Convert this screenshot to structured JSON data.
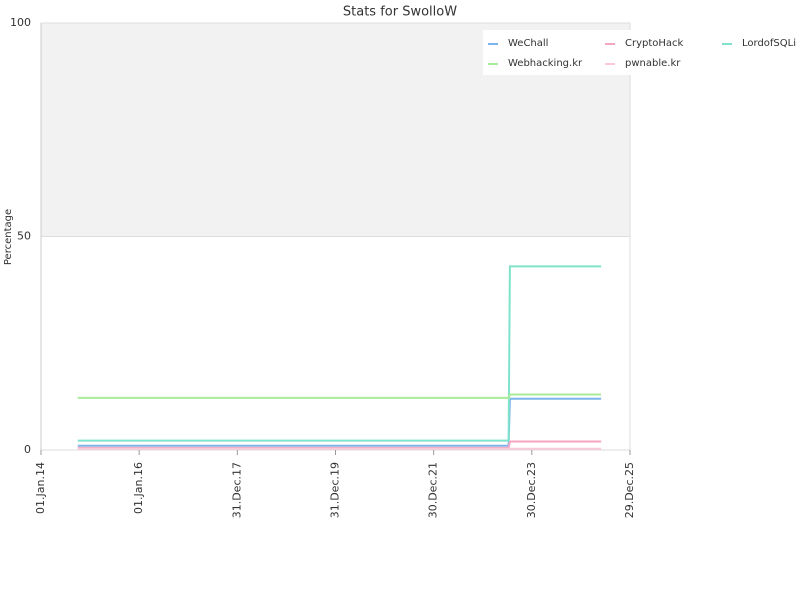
{
  "chart_data": {
    "type": "line",
    "title": "Stats for SwolloW",
    "y_label": "Percentage",
    "x": [
      "2014-10-01",
      "2023-07-10",
      "2023-07-20",
      "2025-05-28"
    ],
    "xlim": [
      "2014-01-01",
      "2025-12-29"
    ],
    "xticks": [
      {
        "value": "2014-01-01",
        "label": "01.Jan.14"
      },
      {
        "value": "2016-01-01",
        "label": "01.Jan.16"
      },
      {
        "value": "2017-12-31",
        "label": "31.Dec.17"
      },
      {
        "value": "2019-12-31",
        "label": "31.Dec.19"
      },
      {
        "value": "2021-12-30",
        "label": "30.Dec.21"
      },
      {
        "value": "2023-12-30",
        "label": "30.Dec.23"
      },
      {
        "value": "2025-12-29",
        "label": "29.Dec.25"
      }
    ],
    "ylim": [
      0,
      100
    ],
    "yticks": [
      0,
      50,
      100
    ],
    "grid": true,
    "series": [
      {
        "name": "WeChall",
        "color": "#7cb5ec",
        "values": [
          1,
          1,
          12,
          12
        ]
      },
      {
        "name": "CryptoHack",
        "color": "#f4a6c0",
        "values": [
          0.5,
          0.5,
          2,
          2
        ]
      },
      {
        "name": "LordofSQLi",
        "color": "#7fe3cc",
        "values": [
          2.2,
          2.2,
          43,
          43
        ]
      },
      {
        "name": "Webhacking.kr",
        "color": "#a8eb98",
        "values": [
          12.2,
          12.2,
          13,
          13
        ]
      },
      {
        "name": "pwnable.kr",
        "color": "#f9c9d8",
        "values": [
          0.3,
          0.3,
          0.3,
          0.3
        ]
      }
    ]
  }
}
